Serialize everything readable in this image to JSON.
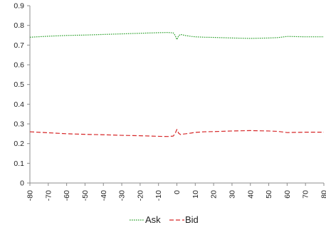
{
  "chart_data": {
    "type": "line",
    "title": "",
    "xlabel": "",
    "ylabel": "",
    "xlim": [
      -80,
      80
    ],
    "ylim": [
      0,
      0.9
    ],
    "x_ticks": [
      -80,
      -70,
      -60,
      -50,
      -40,
      -30,
      -20,
      -10,
      0,
      10,
      20,
      30,
      40,
      50,
      60,
      70,
      80
    ],
    "y_ticks": [
      0,
      0.1,
      0.2,
      0.3,
      0.4,
      0.5,
      0.6,
      0.7,
      0.8,
      0.9
    ],
    "x_tick_labels": [
      "-80",
      "-70",
      "-60",
      "-50",
      "-40",
      "-30",
      "-20",
      "-10",
      "0",
      "10",
      "20",
      "30",
      "40",
      "50",
      "60",
      "70",
      "80"
    ],
    "y_tick_labels": [
      "0",
      "0.1",
      "0.2",
      "0.3",
      "0.4",
      "0.5",
      "0.6",
      "0.7",
      "0.8",
      "0.9"
    ],
    "grid": false,
    "legend": "bottom",
    "series": [
      {
        "name": "Ask",
        "color": "#2ca02c",
        "dash": "dotted",
        "x": [
          -80,
          -70,
          -60,
          -50,
          -40,
          -30,
          -20,
          -10,
          -5,
          -2,
          -1,
          0,
          1,
          2,
          3,
          5,
          8,
          10,
          15,
          20,
          30,
          40,
          50,
          55,
          60,
          65,
          70,
          80
        ],
        "y": [
          0.74,
          0.745,
          0.749,
          0.751,
          0.754,
          0.757,
          0.76,
          0.763,
          0.764,
          0.762,
          0.75,
          0.728,
          0.748,
          0.754,
          0.752,
          0.748,
          0.744,
          0.742,
          0.74,
          0.739,
          0.736,
          0.734,
          0.736,
          0.738,
          0.744,
          0.743,
          0.742,
          0.742
        ]
      },
      {
        "name": "Bid",
        "color": "#d62728",
        "dash": "dashed",
        "x": [
          -80,
          -70,
          -60,
          -50,
          -40,
          -30,
          -20,
          -10,
          -5,
          -2,
          -1,
          0,
          1,
          2,
          3,
          5,
          8,
          10,
          15,
          20,
          30,
          40,
          50,
          55,
          60,
          65,
          70,
          80
        ],
        "y": [
          0.26,
          0.255,
          0.25,
          0.247,
          0.245,
          0.242,
          0.24,
          0.237,
          0.236,
          0.238,
          0.25,
          0.272,
          0.252,
          0.246,
          0.248,
          0.25,
          0.254,
          0.257,
          0.26,
          0.261,
          0.264,
          0.266,
          0.264,
          0.262,
          0.256,
          0.257,
          0.258,
          0.258
        ]
      }
    ]
  }
}
